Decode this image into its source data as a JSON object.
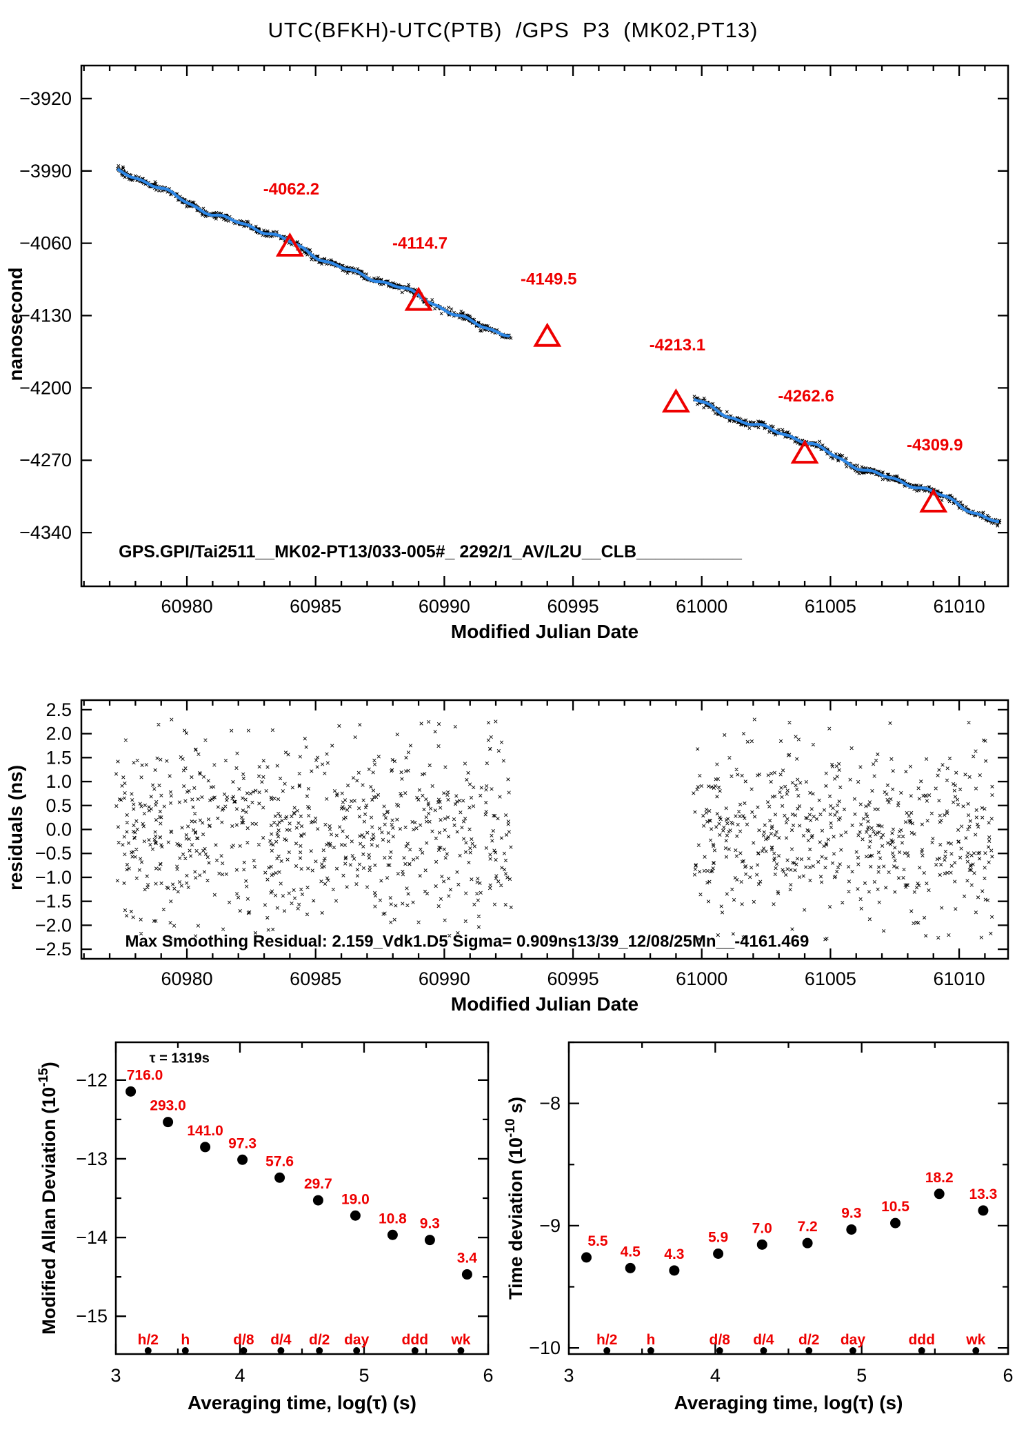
{
  "title": "UTC(BFKH)-UTC(PTB)  /GPS  P3  (MK02,PT13)",
  "chart_data": {
    "phase_panel": {
      "type": "line",
      "xlabel": "Modified Julian Date",
      "ylabel": "nanosecond",
      "xlim": [
        60975.9,
        61011.9
      ],
      "ylim": [
        -4392,
        -3888
      ],
      "xticks_major": [
        60980,
        60985,
        60990,
        60995,
        61000,
        61005,
        61010
      ],
      "xtick_minor_step": 1,
      "yticks": [
        -3920,
        -3990,
        -4060,
        -4130,
        -4200,
        -4270,
        -4340
      ],
      "annotation": "GPS.GPI/Tai2511__MK02-PT13/033-005#_  2292/1_AV/L2U__CLB___________",
      "segments": [
        {
          "name": "segment-1",
          "x0": 60977.3,
          "x1": 60992.6,
          "y0": -3991,
          "y1": -4150
        },
        {
          "name": "segment-2",
          "x0": 60999.7,
          "x1": 61011.6,
          "y0": -4211.5,
          "y1": -4329
        }
      ],
      "markers": [
        {
          "mjd": 60984,
          "value": -4062.2,
          "label": "-4062.2"
        },
        {
          "mjd": 60989,
          "value": -4114.7,
          "label": "-4114.7"
        },
        {
          "mjd": 60994,
          "value": -4149.5,
          "label": "-4149.5"
        },
        {
          "mjd": 60999,
          "value": -4213.1,
          "label": "-4213.1"
        },
        {
          "mjd": 61004,
          "value": -4262.6,
          "label": "-4262.6"
        },
        {
          "mjd": 61009,
          "value": -4309.9,
          "label": "-4309.9"
        }
      ],
      "colors": {
        "trace": "#2d87e6",
        "marker": "#ee0000",
        "noise": "#000000"
      }
    },
    "residuals_panel": {
      "type": "scatter",
      "xlabel": "Modified Julian Date",
      "ylabel": "residuals (ns)",
      "xlim": [
        60975.9,
        61011.9
      ],
      "ylim": [
        -2.7,
        2.7
      ],
      "yticks": [
        2.5,
        2.0,
        1.5,
        1.0,
        0.5,
        0.0,
        -0.5,
        -1.0,
        -1.5,
        -2.0,
        -2.5
      ],
      "xticks_major": [
        60980,
        60985,
        60990,
        60995,
        61000,
        61005,
        61010
      ],
      "xtick_minor_step": 1,
      "sigma_ns": 0.909,
      "clusters": [
        {
          "x0": 60977.25,
          "x1": 60992.6,
          "n": 760
        },
        {
          "x0": 60999.65,
          "x1": 61011.3,
          "n": 570
        }
      ],
      "annotation": "Max Smoothing Residual: 2.159_Vdk1.D5  Sigma= 0.909ns13/39_12/08/25Mn__-4161.469"
    },
    "mdev_panel": {
      "type": "scatter",
      "xlabel": "Averaging time, log(τ) (s)",
      "ylabel_base": "Modified Allan Deviation (10",
      "ylabel_exp": "-15",
      "ylabel_close": ")",
      "xlim": [
        3,
        6
      ],
      "ylim": [
        -15.48,
        -11.52
      ],
      "xticks": [
        3,
        4,
        5,
        6
      ],
      "yticks": [
        -12,
        -13,
        -14,
        -15
      ],
      "tau_annotation": "τ = 1319s",
      "unit_exp": -15,
      "points": [
        {
          "tau_log": 3.12,
          "value": 716.0,
          "label": "716.0"
        },
        {
          "tau_log": 3.42,
          "value": 293.0,
          "label": "293.0"
        },
        {
          "tau_log": 3.72,
          "value": 141.0,
          "label": "141.0"
        },
        {
          "tau_log": 4.02,
          "value": 97.3,
          "label": "97.3"
        },
        {
          "tau_log": 4.32,
          "value": 57.6,
          "label": "57.6"
        },
        {
          "tau_log": 4.63,
          "value": 29.7,
          "label": "29.7"
        },
        {
          "tau_log": 4.93,
          "value": 19.0,
          "label": "19.0"
        },
        {
          "tau_log": 5.23,
          "value": 10.8,
          "label": "10.8"
        },
        {
          "tau_log": 5.53,
          "value": 9.3,
          "label": "9.3"
        },
        {
          "tau_log": 5.83,
          "value": 3.4,
          "label": "3.4"
        }
      ],
      "tau_markers": [
        {
          "label": "h/2",
          "x": 3.26
        },
        {
          "label": "h",
          "x": 3.56
        },
        {
          "label": "d/8",
          "x": 4.03
        },
        {
          "label": "d/4",
          "x": 4.33
        },
        {
          "label": "d/2",
          "x": 4.64
        },
        {
          "label": "day",
          "x": 4.94
        },
        {
          "label": "ddd",
          "x": 5.41
        },
        {
          "label": "wk",
          "x": 5.78
        }
      ]
    },
    "tdev_panel": {
      "type": "scatter",
      "xlabel": "Averaging time, log(τ) (s)",
      "ylabel_base": "Time deviation (10",
      "ylabel_exp": "-10",
      "ylabel_close": " s)",
      "xlim": [
        3,
        6
      ],
      "ylim": [
        -10.05,
        -7.5
      ],
      "xticks": [
        3,
        4,
        5,
        6
      ],
      "yticks": [
        -8,
        -9,
        -10
      ],
      "unit_exp": -10,
      "points": [
        {
          "tau_log": 3.12,
          "value": 5.5,
          "label": "5.5"
        },
        {
          "tau_log": 3.42,
          "value": 4.5,
          "label": "4.5"
        },
        {
          "tau_log": 3.72,
          "value": 4.3,
          "label": "4.3"
        },
        {
          "tau_log": 4.02,
          "value": 5.9,
          "label": "5.9"
        },
        {
          "tau_log": 4.32,
          "value": 7.0,
          "label": "7.0"
        },
        {
          "tau_log": 4.63,
          "value": 7.2,
          "label": "7.2"
        },
        {
          "tau_log": 4.93,
          "value": 9.3,
          "label": "9.3"
        },
        {
          "tau_log": 5.23,
          "value": 10.5,
          "label": "10.5"
        },
        {
          "tau_log": 5.53,
          "value": 18.2,
          "label": "18.2"
        },
        {
          "tau_log": 5.83,
          "value": 13.3,
          "label": "13.3"
        }
      ],
      "tau_markers": [
        {
          "label": "h/2",
          "x": 3.26
        },
        {
          "label": "h",
          "x": 3.56
        },
        {
          "label": "d/8",
          "x": 4.03
        },
        {
          "label": "d/4",
          "x": 4.33
        },
        {
          "label": "d/2",
          "x": 4.64
        },
        {
          "label": "day",
          "x": 4.94
        },
        {
          "label": "ddd",
          "x": 5.41
        },
        {
          "label": "wk",
          "x": 5.78
        }
      ]
    }
  }
}
